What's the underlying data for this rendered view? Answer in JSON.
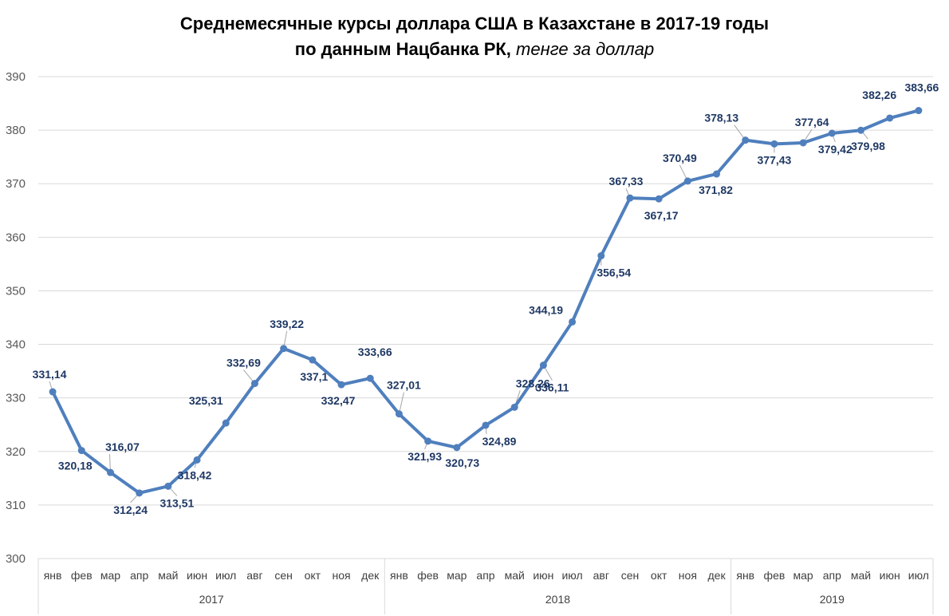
{
  "title": {
    "line1": "Среднемесячные курсы доллара США в Казахстане в 2017-19 годы",
    "line2_bold": "по данным Нацбанка РК,",
    "line2_italic": "тенге за доллар"
  },
  "colors": {
    "line": "#4f7fbd",
    "label": "#1f3864",
    "grid": "#d9d9d9"
  },
  "chart_data": {
    "type": "line",
    "title": "Среднемесячные курсы доллара США в Казахстане в 2017-19 годы по данным Нацбанка РК, тенге за доллар",
    "ylim": [
      300,
      390
    ],
    "yticks": [
      300,
      310,
      320,
      330,
      340,
      350,
      360,
      370,
      380,
      390
    ],
    "grid": true,
    "legend": "none",
    "months": [
      "янв",
      "фев",
      "мар",
      "апр",
      "май",
      "июн",
      "июл",
      "авг",
      "сен",
      "окт",
      "ноя",
      "дек",
      "янв",
      "фев",
      "мар",
      "апр",
      "май",
      "июн",
      "июл",
      "авг",
      "сен",
      "окт",
      "ноя",
      "дек",
      "янв",
      "фев",
      "мар",
      "апр",
      "май",
      "июн",
      "июл"
    ],
    "years": [
      {
        "label": "2017",
        "start": 0,
        "count": 12
      },
      {
        "label": "2018",
        "start": 12,
        "count": 12
      },
      {
        "label": "2019",
        "start": 24,
        "count": 7
      }
    ],
    "values": [
      331.14,
      320.18,
      316.07,
      312.24,
      313.51,
      318.42,
      325.31,
      332.69,
      339.22,
      337.1,
      332.47,
      333.66,
      327.01,
      321.93,
      320.73,
      324.89,
      328.26,
      336.11,
      344.19,
      356.54,
      367.33,
      367.17,
      370.49,
      371.82,
      378.13,
      377.43,
      377.64,
      379.42,
      379.98,
      382.26,
      383.66
    ],
    "labels": [
      "331,14",
      "320,18",
      "316,07",
      "312,24",
      "313,51",
      "318,42",
      "325,31",
      "332,69",
      "339,22",
      "337,1",
      "332,47",
      "333,66",
      "327,01",
      "321,93",
      "320,73",
      "324,89",
      "328,26",
      "336,11",
      "344,19",
      "356,54",
      "367,33",
      "367,17",
      "370,49",
      "371,82",
      "378,13",
      "377,43",
      "377,64",
      "379,42",
      "379,98",
      "382,26",
      "383,66"
    ]
  }
}
